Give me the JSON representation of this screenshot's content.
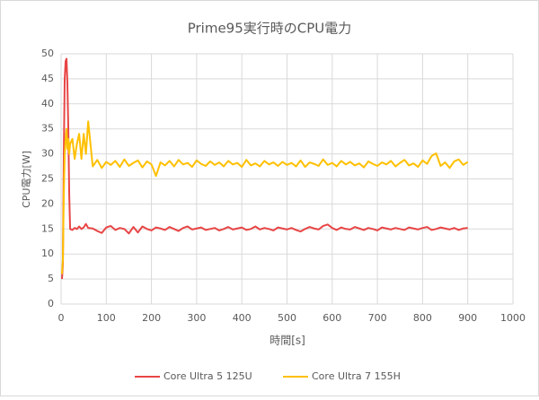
{
  "chart_data": {
    "type": "line",
    "title": "Prime95実行時のCPU電力",
    "x_label": "時間[s]",
    "y_label": "CPU電力[W]",
    "x": [
      2,
      4,
      6,
      8,
      10,
      12,
      14,
      16,
      18,
      20,
      25,
      30,
      35,
      40,
      45,
      50,
      55,
      60,
      70,
      80,
      90,
      100,
      110,
      120,
      130,
      140,
      150,
      160,
      170,
      180,
      190,
      200,
      210,
      220,
      230,
      240,
      250,
      260,
      270,
      280,
      290,
      300,
      310,
      320,
      330,
      340,
      350,
      360,
      370,
      380,
      390,
      400,
      410,
      420,
      430,
      440,
      450,
      460,
      470,
      480,
      490,
      500,
      510,
      520,
      530,
      540,
      550,
      560,
      570,
      580,
      590,
      600,
      610,
      620,
      630,
      640,
      650,
      660,
      670,
      680,
      690,
      700,
      710,
      720,
      730,
      740,
      750,
      760,
      770,
      780,
      790,
      800,
      810,
      820,
      830,
      840,
      850,
      860,
      870,
      880,
      890,
      900
    ],
    "series": [
      {
        "name": "Core Ultra 5 125U",
        "color": "#e84545",
        "values": [
          5,
          8,
          30,
          45,
          48.5,
          49,
          44,
          35,
          22,
          15,
          14.8,
          15.2,
          15,
          15.5,
          15,
          15.3,
          16,
          15.2,
          15.1,
          14.6,
          14.2,
          15.3,
          15.6,
          14.8,
          15.2,
          15.0,
          14.1,
          15.4,
          14.3,
          15.5,
          15.0,
          14.7,
          15.3,
          15.1,
          14.8,
          15.4,
          15.0,
          14.6,
          15.2,
          15.5,
          14.9,
          15.1,
          15.3,
          14.8,
          15.0,
          15.2,
          14.7,
          15.0,
          15.4,
          14.9,
          15.1,
          15.3,
          14.8,
          15.0,
          15.5,
          14.9,
          15.2,
          15.0,
          14.7,
          15.3,
          15.1,
          14.9,
          15.2,
          14.8,
          14.5,
          15.0,
          15.4,
          15.1,
          14.9,
          15.6,
          15.9,
          15.2,
          14.8,
          15.3,
          15.0,
          14.9,
          15.4,
          15.1,
          14.8,
          15.2,
          15.0,
          14.7,
          15.3,
          15.1,
          14.9,
          15.2,
          15.0,
          14.8,
          15.3,
          15.1,
          14.9,
          15.2,
          15.4,
          14.8,
          15.0,
          15.3,
          15.1,
          14.9,
          15.2,
          14.8,
          15.1,
          15.2
        ]
      },
      {
        "name": "Core Ultra 7 155H",
        "color": "#ffc000",
        "values": [
          6,
          9,
          22,
          30,
          33,
          35,
          31,
          33,
          30,
          32,
          33,
          29,
          32,
          34,
          29,
          34,
          30,
          36.5,
          27.5,
          28.8,
          27.2,
          28.4,
          27.8,
          28.6,
          27.4,
          28.9,
          27.6,
          28.2,
          28.7,
          27.3,
          28.5,
          27.9,
          25.6,
          28.3,
          27.7,
          28.6,
          27.5,
          28.8,
          27.9,
          28.2,
          27.4,
          28.7,
          28.0,
          27.6,
          28.5,
          27.8,
          28.3,
          27.5,
          28.6,
          27.9,
          28.2,
          27.4,
          28.8,
          27.7,
          28.1,
          27.5,
          28.6,
          27.9,
          28.3,
          27.6,
          28.4,
          27.8,
          28.2,
          27.5,
          28.7,
          27.4,
          28.3,
          28.0,
          27.6,
          28.9,
          27.8,
          28.2,
          27.5,
          28.6,
          27.9,
          28.4,
          27.7,
          28.1,
          27.3,
          28.5,
          28.0,
          27.6,
          28.3,
          27.9,
          28.6,
          27.5,
          28.2,
          28.8,
          27.7,
          28.1,
          27.4,
          28.7,
          28.0,
          29.6,
          30.1,
          27.6,
          28.3,
          27.2,
          28.5,
          28.9,
          27.8,
          28.4
        ]
      }
    ],
    "xlim": [
      0,
      1000
    ],
    "xticks": [
      0,
      100,
      200,
      300,
      400,
      500,
      600,
      700,
      800,
      900,
      1000
    ],
    "ylim": [
      0,
      50
    ],
    "yticks": [
      0,
      5,
      10,
      15,
      20,
      25,
      30,
      35,
      40,
      45,
      50
    ],
    "grid": true,
    "legend": "bottom"
  }
}
